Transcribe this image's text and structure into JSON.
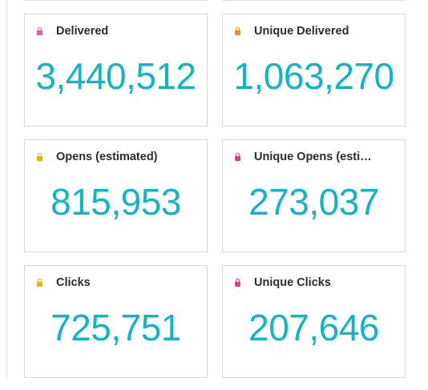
{
  "metrics": [
    {
      "label": "Delivered",
      "value": "3,440,512",
      "lock_color": "#e05a9d",
      "icon": "lock-icon"
    },
    {
      "label": "Unique Delivered",
      "value": "1,063,270",
      "lock_color": "#e8922a",
      "icon": "lock-icon"
    },
    {
      "label": "Opens (estimated)",
      "value": "815,953",
      "lock_color": "#e5b800",
      "icon": "lock-icon"
    },
    {
      "label": "Unique Opens (esti…",
      "value": "273,037",
      "lock_color": "#d9418a",
      "icon": "lock-icon"
    },
    {
      "label": "Clicks",
      "value": "725,751",
      "lock_color": "#e5b800",
      "icon": "lock-icon"
    },
    {
      "label": "Unique Clicks",
      "value": "207,646",
      "lock_color": "#d9418a",
      "icon": "lock-icon"
    }
  ],
  "value_color": "#12b5c3"
}
